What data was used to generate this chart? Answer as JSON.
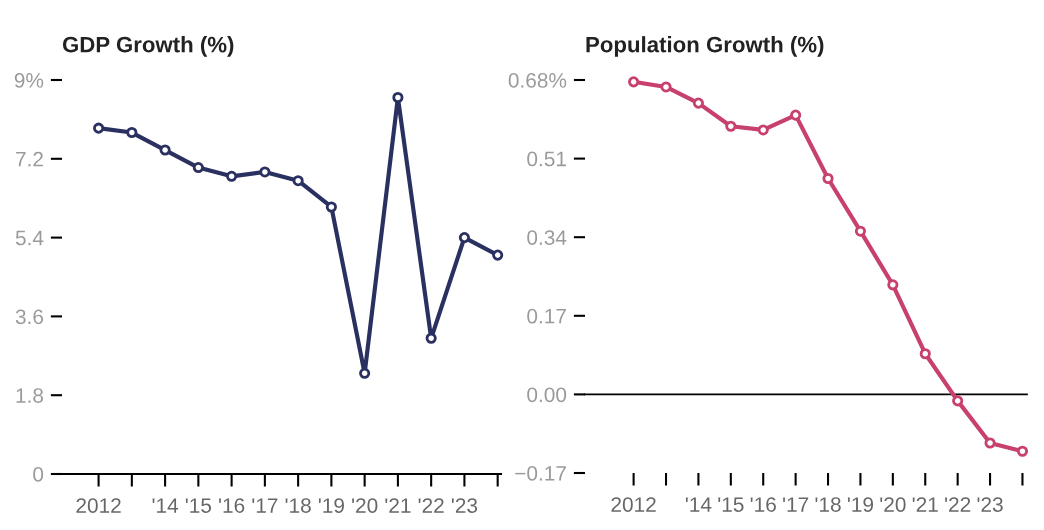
{
  "chart_data": [
    {
      "type": "line",
      "title": "GDP Growth (%)",
      "x": [
        2012,
        2013,
        2014,
        2015,
        2016,
        2017,
        2018,
        2019,
        2020,
        2021,
        2022,
        2023,
        2024
      ],
      "series": [
        {
          "color": "#2a3160",
          "values": [
            7.9,
            7.8,
            7.4,
            7.0,
            6.8,
            6.9,
            6.7,
            6.1,
            2.3,
            8.6,
            3.1,
            5.4,
            5.0
          ]
        }
      ],
      "xlim": [
        2010.9,
        2024.1
      ],
      "xticks": [
        {
          "value": 2012,
          "label": "2012"
        },
        {
          "value": 2013,
          "label": null
        },
        {
          "value": 2014,
          "label": "'14"
        },
        {
          "value": 2015,
          "label": "'15"
        },
        {
          "value": 2016,
          "label": "'16"
        },
        {
          "value": 2017,
          "label": "'17"
        },
        {
          "value": 2018,
          "label": "'18"
        },
        {
          "value": 2019,
          "label": "'19"
        },
        {
          "value": 2020,
          "label": "'20"
        },
        {
          "value": 2021,
          "label": "'21"
        },
        {
          "value": 2022,
          "label": "'22"
        },
        {
          "value": 2023,
          "label": "'23"
        },
        {
          "value": 2024,
          "label": null
        }
      ],
      "ylim": [
        0,
        9
      ],
      "yticks": [
        0,
        1.8,
        3.6,
        5.4,
        7.2,
        {
          "value": 9,
          "label": "9%"
        }
      ],
      "marker": "circle",
      "line_style": "solid",
      "grid": false,
      "legend": false
    },
    {
      "type": "line",
      "title": "Population Growth (%)",
      "x": [
        2012,
        2013,
        2014,
        2015,
        2016,
        2017,
        2018,
        2019,
        2020,
        2021,
        2022,
        2023,
        2024
      ],
      "series": [
        {
          "color": "#c8406f",
          "values": [
            0.676,
            0.665,
            0.63,
            0.58,
            0.572,
            0.604,
            0.467,
            0.353,
            0.237,
            0.088,
            -0.014,
            -0.105,
            -0.123
          ]
        }
      ],
      "xlim": [
        2010.5,
        2024.14
      ],
      "xticks": [
        {
          "value": 2012,
          "label": "2012"
        },
        {
          "value": 2013,
          "label": null
        },
        {
          "value": 2014,
          "label": "'14"
        },
        {
          "value": 2015,
          "label": "'15"
        },
        {
          "value": 2016,
          "label": "'16"
        },
        {
          "value": 2017,
          "label": "'17"
        },
        {
          "value": 2018,
          "label": "'18"
        },
        {
          "value": 2019,
          "label": "'19"
        },
        {
          "value": 2020,
          "label": "'20"
        },
        {
          "value": 2021,
          "label": "'21"
        },
        {
          "value": 2022,
          "label": "'22"
        },
        {
          "value": 2023,
          "label": "'23"
        },
        {
          "value": 2024,
          "label": null
        }
      ],
      "ylim": [
        -0.17,
        0.68
      ],
      "yticks": [
        {
          "value": -0.17,
          "label": "−0.17"
        },
        {
          "value": 0,
          "label": "0.00"
        },
        {
          "value": 0.17,
          "label": "0.17"
        },
        {
          "value": 0.34,
          "label": "0.34"
        },
        {
          "value": 0.51,
          "label": "0.51"
        },
        {
          "value": 0.68,
          "label": "0.68%"
        }
      ],
      "ref_lines": [
        {
          "axis": "y",
          "value": 0,
          "color": "#000000"
        }
      ],
      "marker": "circle",
      "line_style": "solid",
      "grid": false,
      "legend": false
    }
  ]
}
